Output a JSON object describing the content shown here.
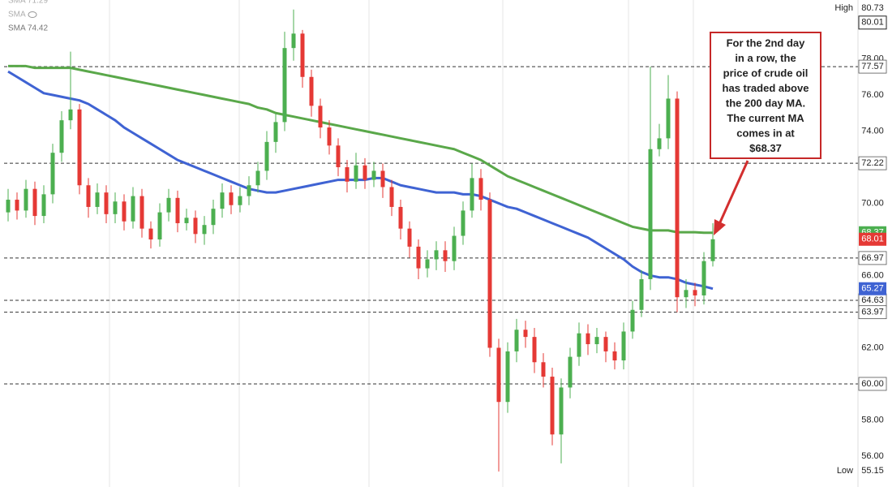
{
  "chart_data": {
    "type": "candlestick",
    "ylim": [
      54.29,
      81.26
    ],
    "yticks": [
      {
        "value": 56,
        "label": "56.00"
      },
      {
        "value": 58,
        "label": "58.00"
      },
      {
        "value": 62,
        "label": "62.00"
      },
      {
        "value": 66,
        "label": "66.00"
      },
      {
        "value": 70,
        "label": "70.00"
      },
      {
        "value": 74,
        "label": "74.00"
      },
      {
        "value": 76,
        "label": "76.00"
      },
      {
        "value": 78,
        "label": "78.00"
      }
    ],
    "up_color": "#4caf50",
    "down_color": "#e53935",
    "ohlc": {
      "open": [
        69.5,
        70.2,
        69.6,
        70.8,
        69.3,
        70.5,
        72.8,
        74.6,
        75.2,
        71.0,
        69.8,
        70.6,
        69.4,
        70.1,
        69.0,
        70.4,
        68.6,
        68.0,
        69.5,
        70.3,
        68.9,
        69.2,
        68.3,
        68.8,
        69.7,
        70.6,
        69.9,
        70.4,
        71.0,
        71.8,
        73.4,
        74.5,
        78.6,
        79.4,
        77.0,
        75.4,
        74.2,
        73.2,
        72.0,
        71.2,
        72.1,
        71.3,
        71.8,
        70.9,
        69.8,
        68.6,
        67.6,
        66.4,
        66.9,
        67.4,
        66.8,
        68.2,
        69.6,
        71.4,
        70.2,
        62.0,
        59.0,
        61.8,
        63.0,
        62.6,
        61.2,
        60.4,
        57.2,
        59.8,
        61.5,
        62.8,
        62.2,
        62.6,
        61.8,
        61.3,
        62.9,
        64.1,
        65.8,
        73.0,
        73.6,
        75.8,
        64.8,
        65.2,
        64.9,
        66.8
      ],
      "high": [
        70.8,
        70.6,
        71.3,
        71.2,
        71.0,
        73.3,
        75.1,
        78.4,
        75.5,
        71.4,
        71.1,
        71.0,
        70.6,
        70.5,
        70.9,
        70.8,
        69.0,
        70.0,
        70.8,
        70.7,
        69.7,
        69.6,
        69.3,
        70.2,
        71.1,
        71.0,
        70.9,
        71.5,
        72.3,
        74.0,
        75.0,
        79.5,
        80.73,
        79.6,
        77.4,
        75.8,
        74.6,
        73.6,
        72.4,
        72.8,
        72.5,
        72.3,
        72.2,
        71.3,
        70.2,
        69.0,
        68.0,
        67.4,
        67.9,
        67.9,
        68.7,
        70.1,
        72.2,
        71.9,
        70.6,
        62.5,
        62.3,
        63.6,
        63.5,
        63.1,
        61.7,
        60.9,
        60.3,
        62.0,
        63.4,
        63.3,
        63.1,
        62.9,
        62.3,
        63.4,
        64.6,
        66.3,
        77.57,
        74.4,
        77.1,
        76.2,
        65.8,
        65.6,
        67.3,
        68.9
      ],
      "low": [
        69.0,
        69.1,
        69.2,
        68.8,
        68.9,
        70.0,
        72.3,
        74.1,
        70.5,
        69.2,
        69.4,
        68.9,
        68.9,
        68.5,
        68.6,
        68.1,
        67.5,
        67.6,
        69.0,
        68.4,
        68.5,
        67.8,
        67.7,
        68.3,
        69.2,
        69.4,
        69.5,
        69.9,
        70.6,
        71.3,
        72.8,
        74.0,
        77.9,
        76.4,
        74.8,
        73.6,
        72.7,
        71.5,
        70.6,
        70.8,
        70.8,
        70.9,
        70.3,
        69.3,
        68.0,
        67.0,
        65.8,
        65.9,
        66.3,
        66.2,
        66.3,
        67.7,
        69.2,
        69.6,
        61.5,
        55.15,
        58.4,
        61.2,
        62.0,
        60.6,
        59.8,
        56.6,
        55.6,
        59.2,
        61.0,
        61.6,
        61.7,
        61.2,
        60.8,
        60.8,
        62.5,
        63.7,
        65.2,
        72.6,
        73.0,
        63.97,
        64.2,
        64.3,
        64.4,
        66.5
      ],
      "close": [
        70.2,
        69.6,
        70.8,
        69.3,
        70.5,
        72.8,
        74.6,
        75.2,
        71.0,
        69.8,
        70.6,
        69.4,
        70.1,
        69.0,
        70.4,
        68.6,
        68.0,
        69.5,
        70.3,
        68.9,
        69.2,
        68.3,
        68.8,
        69.7,
        70.6,
        69.9,
        70.4,
        71.0,
        71.8,
        73.4,
        74.5,
        78.6,
        79.4,
        77.0,
        75.4,
        74.2,
        73.2,
        72.0,
        71.2,
        72.1,
        71.3,
        71.8,
        70.9,
        69.8,
        68.6,
        67.6,
        66.4,
        66.9,
        67.4,
        66.8,
        68.2,
        69.6,
        71.4,
        70.2,
        62.0,
        59.0,
        61.8,
        63.0,
        62.6,
        61.2,
        60.4,
        57.2,
        59.8,
        61.5,
        62.8,
        62.2,
        62.6,
        61.8,
        61.3,
        62.9,
        64.1,
        65.8,
        73.0,
        73.6,
        75.8,
        64.8,
        65.2,
        64.9,
        66.8,
        68.01
      ]
    },
    "series": [
      {
        "color": "#3f63d3",
        "values": [
          77.3,
          77.0,
          76.7,
          76.4,
          76.1,
          76.0,
          75.9,
          75.8,
          75.7,
          75.5,
          75.2,
          74.9,
          74.6,
          74.2,
          73.9,
          73.6,
          73.3,
          73.0,
          72.7,
          72.4,
          72.2,
          72.0,
          71.8,
          71.6,
          71.4,
          71.2,
          71.0,
          70.8,
          70.7,
          70.6,
          70.6,
          70.7,
          70.8,
          70.9,
          71.0,
          71.1,
          71.2,
          71.3,
          71.3,
          71.3,
          71.3,
          71.4,
          71.4,
          71.2,
          71.0,
          70.9,
          70.8,
          70.7,
          70.6,
          70.6,
          70.6,
          70.5,
          70.5,
          70.4,
          70.2,
          70.0,
          69.8,
          69.7,
          69.5,
          69.3,
          69.1,
          68.9,
          68.7,
          68.5,
          68.3,
          68.1,
          67.8,
          67.5,
          67.2,
          66.9,
          66.5,
          66.2,
          66.0,
          65.9,
          65.9,
          65.8,
          65.6,
          65.5,
          65.4,
          65.27
        ]
      },
      {
        "color": "#5aa84a",
        "values": [
          77.6,
          77.6,
          77.6,
          77.5,
          77.5,
          77.5,
          77.5,
          77.5,
          77.4,
          77.3,
          77.2,
          77.1,
          77.0,
          76.9,
          76.8,
          76.7,
          76.6,
          76.5,
          76.4,
          76.3,
          76.2,
          76.1,
          76.0,
          75.9,
          75.8,
          75.7,
          75.6,
          75.5,
          75.3,
          75.2,
          75.0,
          74.9,
          74.8,
          74.7,
          74.6,
          74.5,
          74.4,
          74.3,
          74.2,
          74.1,
          74.0,
          73.9,
          73.8,
          73.7,
          73.6,
          73.5,
          73.4,
          73.3,
          73.2,
          73.1,
          73.0,
          72.8,
          72.6,
          72.4,
          72.1,
          71.8,
          71.5,
          71.3,
          71.1,
          70.9,
          70.7,
          70.5,
          70.3,
          70.1,
          69.9,
          69.7,
          69.5,
          69.3,
          69.1,
          68.9,
          68.7,
          68.6,
          68.5,
          68.5,
          68.5,
          68.4,
          68.4,
          68.4,
          68.37,
          68.37
        ]
      }
    ],
    "legend": [
      {
        "name": "SMA",
        "value": 71.29
      },
      {
        "name": "SMA"
      },
      {
        "name": "SMA",
        "value": 74.42
      }
    ],
    "price_lines": [
      77.57,
      72.22,
      66.97,
      64.63,
      63.97,
      {
        "value": 60,
        "label": "60.00"
      }
    ],
    "price_labels": [
      80.01
    ],
    "markers": [
      {
        "value": 68.37,
        "color": "#4caf50"
      },
      {
        "value": 68.01,
        "color": "#e53935"
      },
      {
        "value": 65.27,
        "color": "#3f63d3"
      }
    ],
    "high": {
      "label": "High",
      "value": 80.73
    },
    "low": {
      "label": "Low",
      "value": 55.15
    },
    "annotation": {
      "lines": [
        "For the 2nd day",
        "in a row, the",
        "price of crude oil",
        "has traded above",
        "the 200 day MA.",
        "The current MA",
        "comes in at",
        "$68.37"
      ]
    }
  }
}
